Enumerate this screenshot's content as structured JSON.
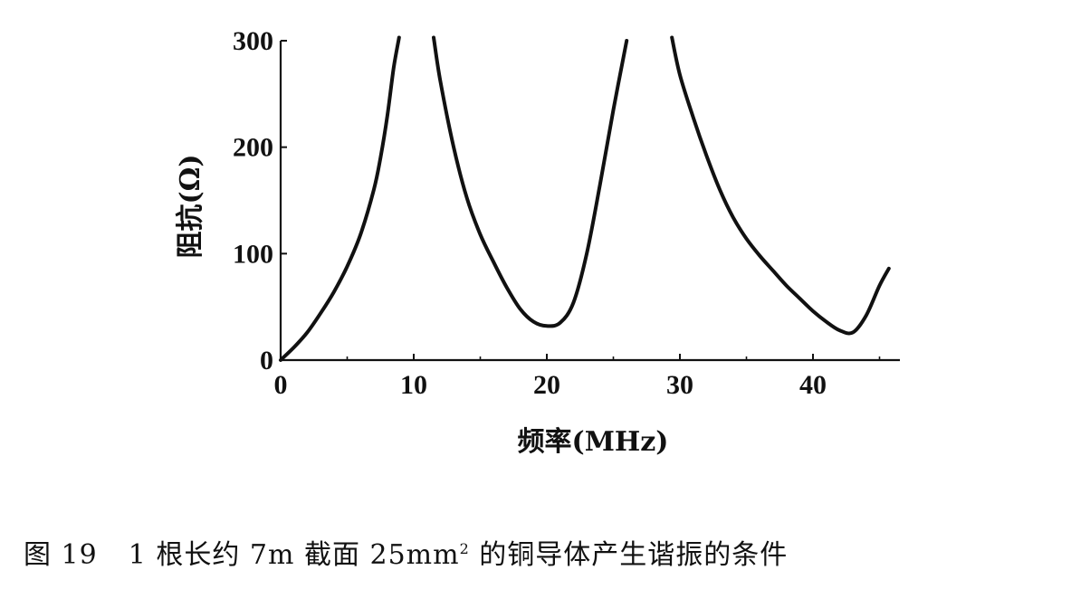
{
  "chart_data": {
    "type": "line",
    "xlabel": "频率(MHz)",
    "ylabel": "阻抗(Ω)",
    "xlim": [
      0,
      46
    ],
    "ylim": [
      0,
      300
    ],
    "x_ticks": [
      0,
      10,
      20,
      30,
      40
    ],
    "y_ticks": [
      0,
      100,
      200,
      300
    ],
    "grid": false,
    "series": [
      {
        "segments": [
          [
            [
              0,
              0
            ],
            [
              1,
              12
            ],
            [
              2,
              26
            ],
            [
              3,
              44
            ],
            [
              4,
              64
            ],
            [
              5,
              88
            ],
            [
              6,
              118
            ],
            [
              7,
              160
            ],
            [
              7.5,
              190
            ],
            [
              8,
              228
            ],
            [
              8.5,
              275
            ],
            [
              8.9,
              303
            ]
          ],
          [
            [
              11.5,
              303
            ],
            [
              12,
              262
            ],
            [
              13,
              200
            ],
            [
              14,
              152
            ],
            [
              15,
              118
            ],
            [
              16,
              92
            ],
            [
              17,
              68
            ],
            [
              18,
              48
            ],
            [
              19,
              36
            ],
            [
              20,
              32
            ],
            [
              21,
              35
            ],
            [
              22,
              54
            ],
            [
              23,
              100
            ],
            [
              24,
              165
            ],
            [
              25,
              235
            ],
            [
              26,
              300
            ]
          ],
          [
            [
              29.4,
              303
            ],
            [
              30,
              268
            ],
            [
              31,
              228
            ],
            [
              32,
              192
            ],
            [
              33,
              160
            ],
            [
              34,
              134
            ],
            [
              35,
              114
            ],
            [
              36,
              98
            ],
            [
              37,
              84
            ],
            [
              38,
              70
            ],
            [
              39,
              58
            ],
            [
              40,
              46
            ],
            [
              41,
              36
            ],
            [
              42,
              28
            ],
            [
              43,
              26
            ],
            [
              44,
              42
            ],
            [
              45,
              70
            ],
            [
              45.7,
              86
            ]
          ]
        ]
      }
    ]
  },
  "caption": {
    "figure_label": "图 19",
    "text_before_sup": "1 根长约 7m 截面 25mm",
    "superscript": "2",
    "text_after_sup": " 的铜导体产生谐振的条件"
  }
}
